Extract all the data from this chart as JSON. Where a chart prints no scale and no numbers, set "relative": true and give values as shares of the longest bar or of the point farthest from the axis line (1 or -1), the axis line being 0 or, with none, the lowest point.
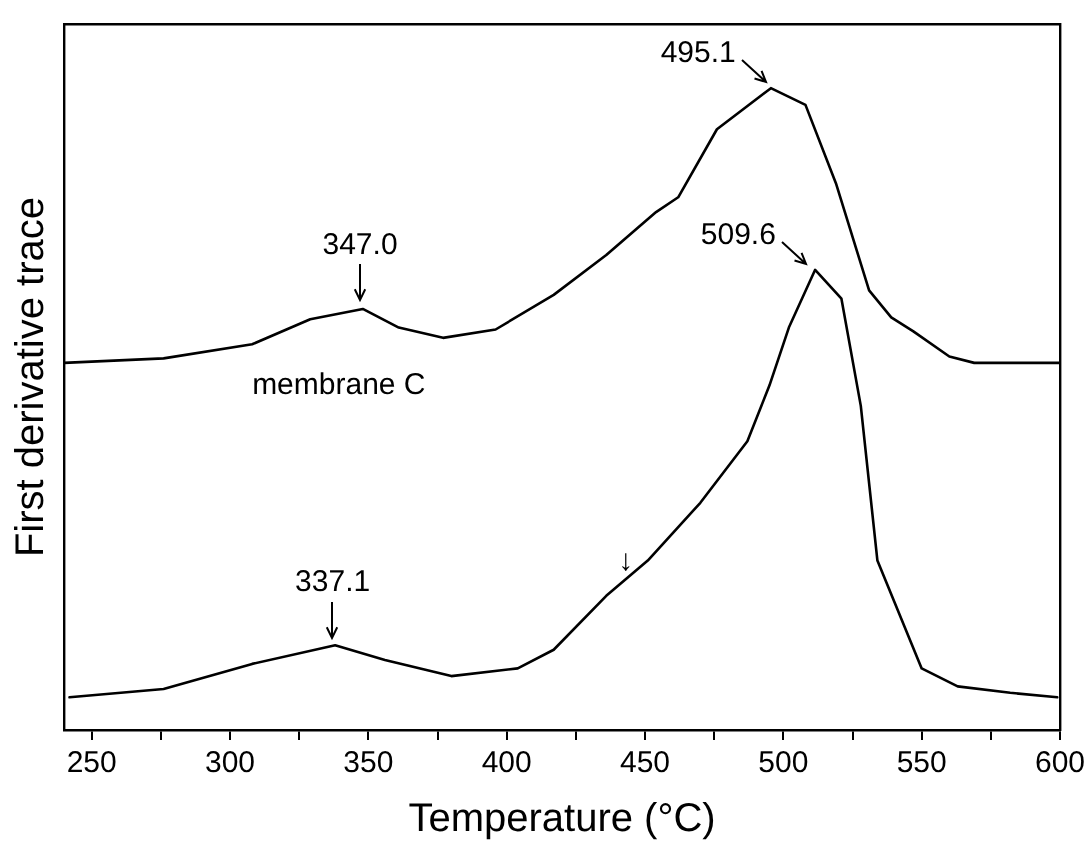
{
  "chart_data": {
    "type": "line",
    "relative": true,
    "xlabel": "Temperature (°C)",
    "ylabel": "First derivative trace",
    "xlim": [
      240,
      600
    ],
    "xticks": [
      250,
      {
        "value": 275,
        "label": null
      },
      300,
      {
        "value": 325,
        "label": null
      },
      350,
      {
        "value": 375,
        "label": null
      },
      400,
      {
        "value": 425,
        "label": null
      },
      450,
      {
        "value": 475,
        "label": null
      },
      500,
      {
        "value": 525,
        "label": null
      },
      550,
      {
        "value": 575,
        "label": null
      },
      600
    ],
    "series": [
      {
        "name": "membrane C",
        "color": "#000000",
        "x": [
          240,
          276,
          308,
          329,
          348,
          361,
          377,
          396,
          417,
          436,
          454,
          462,
          476,
          495.5,
          508,
          519,
          531,
          539,
          547,
          560,
          569,
          600
        ],
        "values": [
          0.572,
          0.579,
          0.601,
          0.64,
          0.656,
          0.627,
          0.611,
          0.624,
          0.678,
          0.74,
          0.807,
          0.83,
          0.936,
          1.0,
          0.974,
          0.852,
          0.685,
          0.643,
          0.621,
          0.582,
          0.572,
          0.572
        ]
      },
      {
        "color": "#000000",
        "x": [
          242,
          276,
          308,
          338,
          356,
          380,
          404,
          417,
          436,
          451,
          470,
          487,
          495,
          502,
          511.5,
          521,
          528,
          534,
          550,
          563,
          582,
          599
        ],
        "values": [
          0.051,
          0.064,
          0.103,
          0.132,
          0.109,
          0.084,
          0.096,
          0.125,
          0.209,
          0.264,
          0.354,
          0.45,
          0.537,
          0.627,
          0.717,
          0.672,
          0.505,
          0.264,
          0.096,
          0.068,
          0.058,
          0.051
        ]
      }
    ],
    "annotations": [
      {
        "text": "347.0",
        "x": 347.0,
        "y": 0.656
      },
      {
        "text": "495.1",
        "x": 495.1,
        "y": 1.0
      },
      {
        "text": "509.6",
        "x": 509.6,
        "y": 0.717
      },
      {
        "text": "337.1",
        "x": 337.1,
        "y": 0.132
      },
      {
        "text": "↓",
        "x": 443,
        "y": 0.23
      }
    ],
    "grid": false,
    "legend": false,
    "marker": "none",
    "line_style": "solid"
  }
}
